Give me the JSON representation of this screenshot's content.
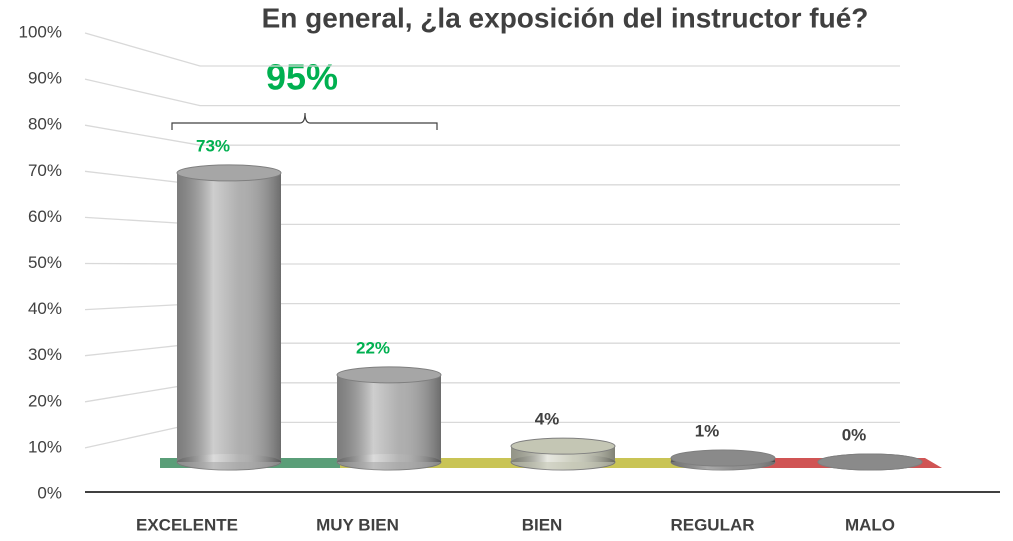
{
  "chart_data": {
    "type": "bar3d",
    "title": "En general, ¿la exposición del instructor fué?",
    "categories": [
      "EXCELENTE",
      "MUY BIEN",
      "BIEN",
      "REGULAR",
      "MALO"
    ],
    "values": [
      73,
      22,
      4,
      1,
      0
    ],
    "value_labels": [
      "73%",
      "22%",
      "4%",
      "1%",
      "0%"
    ],
    "colors": [
      "#a6a6a6",
      "#a6a6a6",
      "#c4c6b4",
      "#8a8a8a",
      "#8a8a8a"
    ],
    "value_label_colors": [
      "#00b050",
      "#00b050",
      "#404040",
      "#404040",
      "#404040"
    ],
    "ylim": [
      0,
      100
    ],
    "yticks": [
      {
        "value": 0,
        "label": "0%"
      },
      {
        "value": 10,
        "label": "10%"
      },
      {
        "value": 20,
        "label": "20%"
      },
      {
        "value": 30,
        "label": "30%"
      },
      {
        "value": 40,
        "label": "40%"
      },
      {
        "value": 50,
        "label": "50%"
      },
      {
        "value": 60,
        "label": "60%"
      },
      {
        "value": 70,
        "label": "70%"
      },
      {
        "value": 80,
        "label": "80%"
      },
      {
        "value": 90,
        "label": "90%"
      },
      {
        "value": 100,
        "label": "100%"
      }
    ],
    "grid": true,
    "annotation": "95%",
    "annotation_color": "#00b050"
  }
}
